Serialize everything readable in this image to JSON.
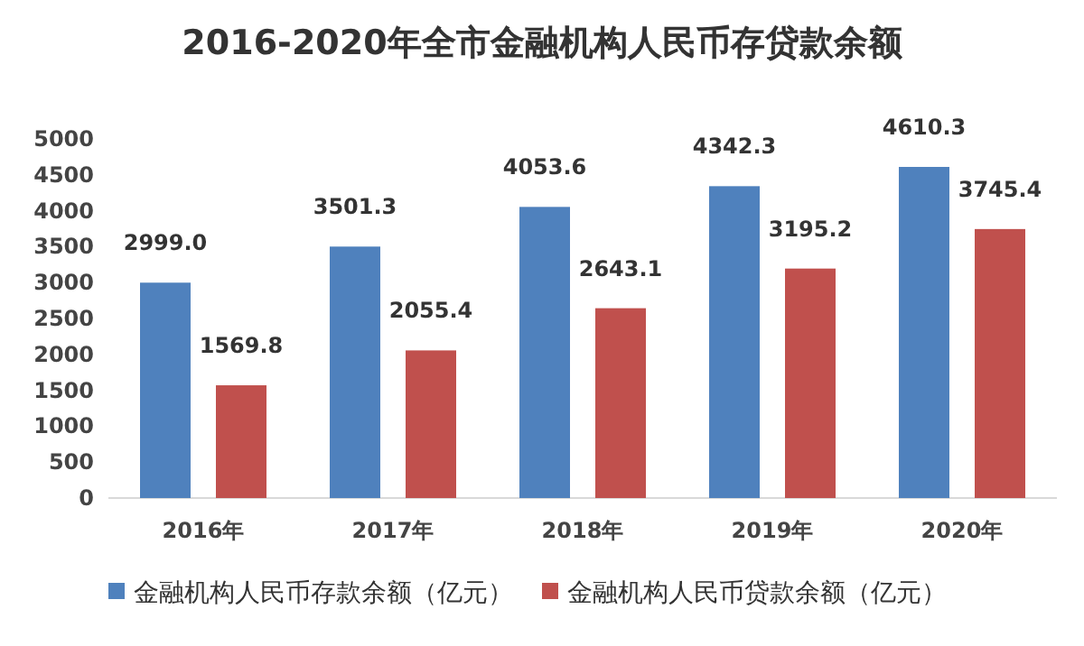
{
  "chart_data": {
    "type": "bar",
    "title": "2016-2020年全市金融机构人民币存贷款余额",
    "categories": [
      "2016年",
      "2017年",
      "2018年",
      "2019年",
      "2020年"
    ],
    "series": [
      {
        "name": "金融机构人民币存款余额（亿元）",
        "color": "#4f81bd",
        "values": [
          2999.0,
          3501.3,
          4053.6,
          4342.3,
          4610.3
        ],
        "value_labels": [
          "2999.0",
          "3501.3",
          "4053.6",
          "4342.3",
          "4610.3"
        ]
      },
      {
        "name": "金融机构人民币贷款余额（亿元）",
        "color": "#c0504d",
        "values": [
          1569.8,
          2055.4,
          2643.1,
          3195.2,
          3745.4
        ],
        "value_labels": [
          "1569.8",
          "2055.4",
          "2643.1",
          "3195.2",
          "3745.4"
        ]
      }
    ],
    "ylim": [
      0,
      5000
    ],
    "yticks": [
      0,
      500,
      1000,
      1500,
      2000,
      2500,
      3000,
      3500,
      4000,
      4500,
      5000
    ],
    "grid": false,
    "legend": "bottom"
  }
}
